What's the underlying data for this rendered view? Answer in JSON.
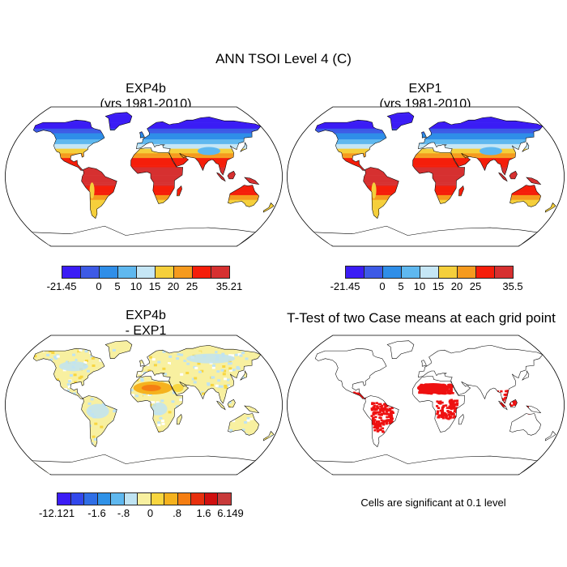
{
  "title": "ANN TSOI Level 4 (C)",
  "panels": {
    "a": {
      "title": "EXP4b",
      "subtitle": "(yrs 1981-2010)"
    },
    "b": {
      "title": "EXP1",
      "subtitle": "(yrs 1981-2010)"
    },
    "c": {
      "title": "EXP4b",
      "subtitle": "- EXP1"
    },
    "d": {
      "title": "T-Test of two Case means at each grid point"
    }
  },
  "colorbars": {
    "a": {
      "colors": [
        "#3b1cf5",
        "#3d5ae6",
        "#2f8ee8",
        "#5fb8ef",
        "#c5e6f5",
        "#f5cf3b",
        "#f59a1e",
        "#f51e0a",
        "#d63030"
      ],
      "labels": [
        "-21.45",
        "0",
        "5",
        "10",
        "15",
        "20",
        "25",
        "35.21"
      ]
    },
    "b": {
      "colors": [
        "#3b1cf5",
        "#3d5ae6",
        "#2f8ee8",
        "#5fb8ef",
        "#c5e6f5",
        "#f5cf3b",
        "#f59a1e",
        "#f51e0a",
        "#d63030"
      ],
      "labels": [
        "-21.45",
        "0",
        "5",
        "10",
        "15",
        "20",
        "25",
        "35.5"
      ]
    },
    "c": {
      "colors": [
        "#3b1cf5",
        "#3248ec",
        "#2f6ee6",
        "#2f92e8",
        "#5fb8ef",
        "#bfe3f2",
        "#f8f0a0",
        "#f8d640",
        "#f5b21e",
        "#f57e12",
        "#e8300e",
        "#d01010",
        "#c83a3a"
      ],
      "labels": [
        "-12.121",
        "-1.6",
        "-.8",
        "0",
        ".8",
        "1.6",
        "6.149"
      ]
    }
  },
  "significance_note": "Cells are significant at 0.1 level",
  "colors": {
    "ocean": "#ffffff",
    "coast": "#000000",
    "significant": "#ee1111"
  }
}
